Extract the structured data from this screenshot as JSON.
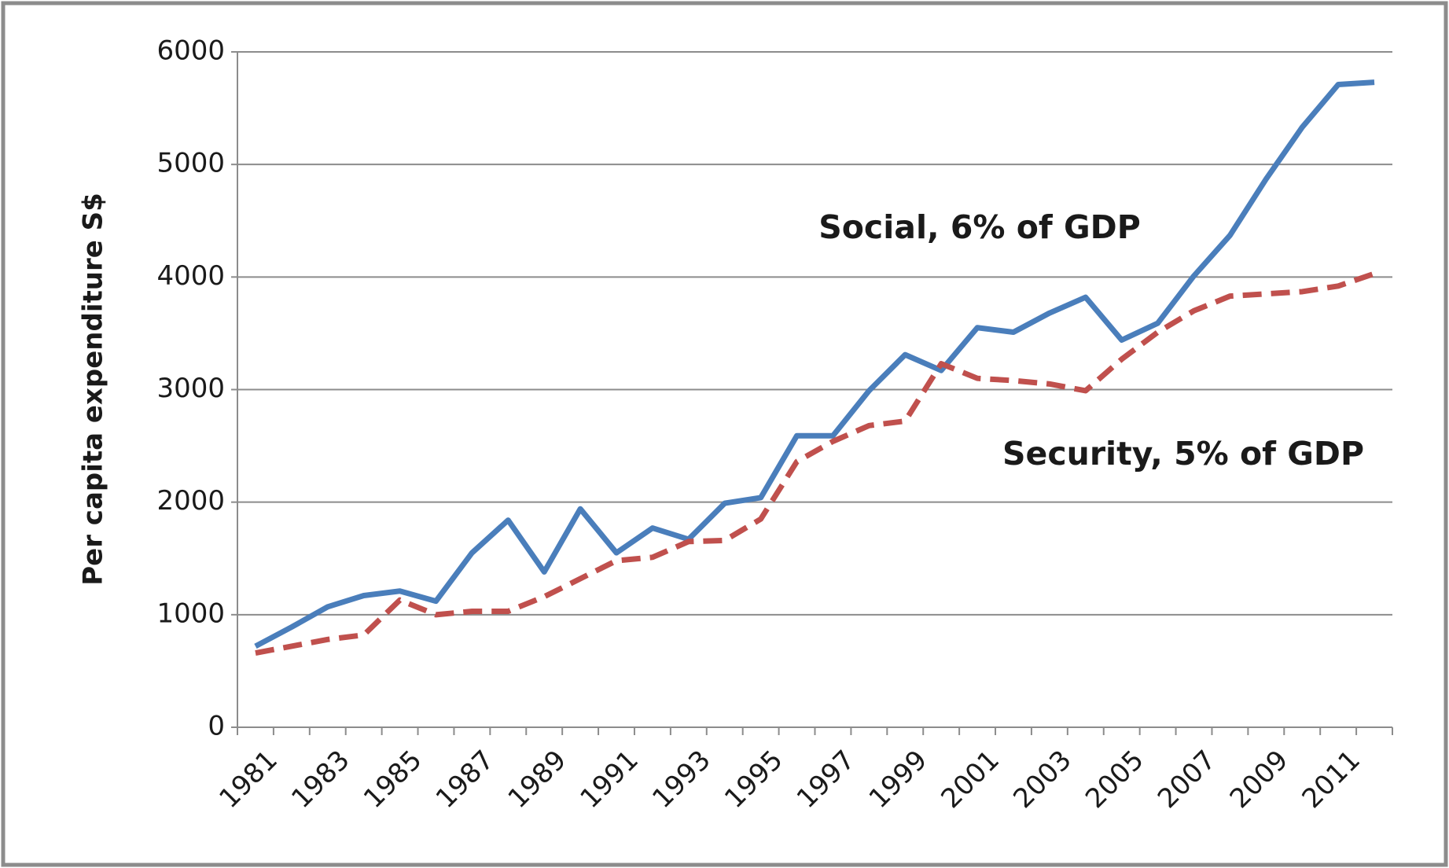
{
  "chart_data": {
    "type": "line",
    "y_label": "Per capita expenditure S$",
    "annotations": [
      "Social, 6% of GDP",
      "Security, 5% of GDP"
    ],
    "categories": [
      "1981",
      null,
      "1983",
      null,
      "1985",
      null,
      "1987",
      null,
      "1989",
      null,
      "1991",
      null,
      "1993",
      null,
      "1995",
      null,
      "1997",
      null,
      "1999",
      null,
      "2001",
      null,
      "2003",
      null,
      "2005",
      null,
      "2007",
      null,
      "2009",
      null,
      "2011",
      null
    ],
    "series": [
      {
        "color": "#4a7ebb",
        "dash": false,
        "values": [
          720,
          890,
          1070,
          1170,
          1210,
          1120,
          1550,
          1840,
          1380,
          1940,
          1550,
          1770,
          1670,
          1990,
          2040,
          2590,
          2590,
          2990,
          3310,
          3170,
          3550,
          3510,
          3680,
          3820,
          3440,
          3590,
          4010,
          4370,
          4870,
          5330,
          5710,
          5730
        ]
      },
      {
        "color": "#c0504d",
        "dash": true,
        "values": [
          660,
          720,
          780,
          820,
          1130,
          1000,
          1030,
          1030,
          1160,
          1320,
          1480,
          1510,
          1650,
          1660,
          1850,
          2360,
          2540,
          2680,
          2720,
          3230,
          3100,
          3080,
          3050,
          2990,
          3270,
          3510,
          3700,
          3830,
          3850,
          3870,
          3920,
          4030
        ]
      }
    ],
    "ylim": [
      0,
      6000
    ],
    "yticks": [
      0,
      1000,
      2000,
      3000,
      4000,
      5000,
      6000
    ],
    "grid": true
  }
}
